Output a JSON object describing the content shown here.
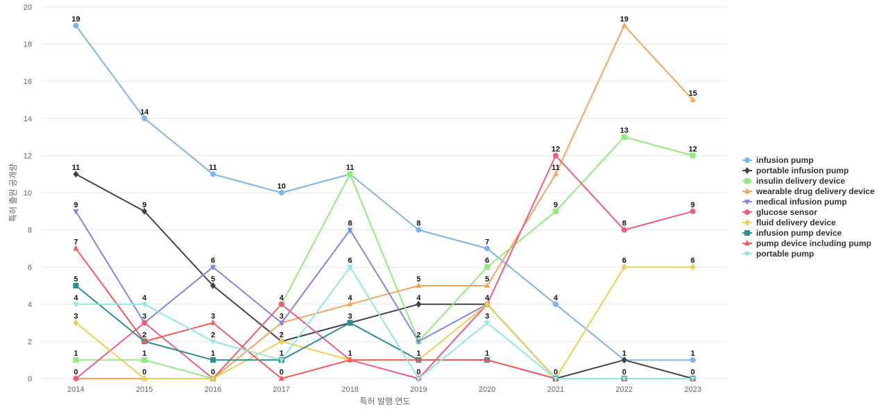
{
  "chart_data": {
    "type": "line",
    "title": "",
    "xlabel": "특허 발행 연도",
    "ylabel": "특허 출원 공개량",
    "x": [
      "2014",
      "2015",
      "2016",
      "2017",
      "2018",
      "2019",
      "2020",
      "2021",
      "2022",
      "2023"
    ],
    "ylim": [
      0,
      20
    ],
    "yticks": [
      0,
      2,
      4,
      6,
      8,
      10,
      12,
      14,
      16,
      18,
      20
    ],
    "grid": true,
    "legend_position": "right",
    "series": [
      {
        "name": "infusion pump",
        "color": "#7cb5ec",
        "marker": "circle",
        "values": [
          19,
          14,
          11,
          10,
          11,
          8,
          7,
          4,
          1,
          1
        ]
      },
      {
        "name": "portable infusion pump",
        "color": "#434348",
        "marker": "diamond",
        "values": [
          11,
          9,
          5,
          2,
          3,
          4,
          4,
          0,
          1,
          0
        ]
      },
      {
        "name": "insulin delivery device",
        "color": "#90ed7d",
        "marker": "square",
        "values": [
          1,
          1,
          0,
          4,
          11,
          2,
          6,
          9,
          13,
          12
        ]
      },
      {
        "name": "wearable drug delivery device",
        "color": "#f7a35c",
        "marker": "triangle",
        "values": [
          0,
          0,
          0,
          3,
          4,
          5,
          5,
          11,
          19,
          15
        ]
      },
      {
        "name": "medical infusion pump",
        "color": "#8085e9",
        "marker": "triangle-down",
        "values": [
          9,
          3,
          6,
          3,
          8,
          2,
          4,
          0,
          0,
          0
        ]
      },
      {
        "name": "glucose sensor",
        "color": "#f15c80",
        "marker": "circle",
        "values": [
          0,
          3,
          0,
          4,
          1,
          0,
          4,
          12,
          8,
          9
        ]
      },
      {
        "name": "fluid delivery device",
        "color": "#e4d354",
        "marker": "diamond",
        "values": [
          3,
          0,
          0,
          2,
          1,
          1,
          4,
          0,
          6,
          6
        ]
      },
      {
        "name": "infusion pump device",
        "color": "#2b908f",
        "marker": "square",
        "values": [
          5,
          2,
          1,
          1,
          3,
          1,
          1,
          0,
          0,
          0
        ]
      },
      {
        "name": "pump device including pump",
        "color": "#f45b5b",
        "marker": "triangle",
        "values": [
          7,
          2,
          3,
          0,
          1,
          1,
          1,
          0,
          0,
          0
        ]
      },
      {
        "name": "portable pump",
        "color": "#91e8e1",
        "marker": "triangle-down",
        "values": [
          4,
          4,
          2,
          1,
          6,
          0,
          3,
          0,
          0,
          0
        ]
      }
    ],
    "data_labels": [
      {
        "x": "2014",
        "y": 19,
        "text": "19"
      },
      {
        "x": "2014",
        "y": 11,
        "text": "11"
      },
      {
        "x": "2014",
        "y": 9,
        "text": "9"
      },
      {
        "x": "2014",
        "y": 7,
        "text": "7"
      },
      {
        "x": "2014",
        "y": 5,
        "text": "5"
      },
      {
        "x": "2014",
        "y": 4,
        "text": "4"
      },
      {
        "x": "2014",
        "y": 3,
        "text": "3"
      },
      {
        "x": "2014",
        "y": 1,
        "text": "1"
      },
      {
        "x": "2014",
        "y": 0,
        "text": "0"
      },
      {
        "x": "2015",
        "y": 14,
        "text": "14"
      },
      {
        "x": "2015",
        "y": 9,
        "text": "9"
      },
      {
        "x": "2015",
        "y": 4,
        "text": "4"
      },
      {
        "x": "2015",
        "y": 3,
        "text": "3"
      },
      {
        "x": "2015",
        "y": 2,
        "text": "2"
      },
      {
        "x": "2015",
        "y": 1,
        "text": "1"
      },
      {
        "x": "2015",
        "y": 0,
        "text": "0"
      },
      {
        "x": "2016",
        "y": 11,
        "text": "11"
      },
      {
        "x": "2016",
        "y": 6,
        "text": "6"
      },
      {
        "x": "2016",
        "y": 5,
        "text": "5"
      },
      {
        "x": "2016",
        "y": 3,
        "text": "3"
      },
      {
        "x": "2016",
        "y": 2,
        "text": "2"
      },
      {
        "x": "2016",
        "y": 1,
        "text": "1"
      },
      {
        "x": "2016",
        "y": 0,
        "text": "0"
      },
      {
        "x": "2017",
        "y": 10,
        "text": "10"
      },
      {
        "x": "2017",
        "y": 4,
        "text": "4"
      },
      {
        "x": "2017",
        "y": 3,
        "text": "3"
      },
      {
        "x": "2017",
        "y": 2,
        "text": "2"
      },
      {
        "x": "2017",
        "y": 1,
        "text": "1"
      },
      {
        "x": "2017",
        "y": 0,
        "text": "0"
      },
      {
        "x": "2018",
        "y": 11,
        "text": "11"
      },
      {
        "x": "2018",
        "y": 8,
        "text": "8"
      },
      {
        "x": "2018",
        "y": 6,
        "text": "6"
      },
      {
        "x": "2018",
        "y": 4,
        "text": "4"
      },
      {
        "x": "2018",
        "y": 3,
        "text": "3"
      },
      {
        "x": "2018",
        "y": 1,
        "text": "1"
      },
      {
        "x": "2019",
        "y": 8,
        "text": "8"
      },
      {
        "x": "2019",
        "y": 5,
        "text": "5"
      },
      {
        "x": "2019",
        "y": 4,
        "text": "4"
      },
      {
        "x": "2019",
        "y": 2,
        "text": "2"
      },
      {
        "x": "2019",
        "y": 1,
        "text": "1"
      },
      {
        "x": "2019",
        "y": 0,
        "text": "0"
      },
      {
        "x": "2020",
        "y": 7,
        "text": "7"
      },
      {
        "x": "2020",
        "y": 6,
        "text": "6"
      },
      {
        "x": "2020",
        "y": 5,
        "text": "5"
      },
      {
        "x": "2020",
        "y": 4,
        "text": "4"
      },
      {
        "x": "2020",
        "y": 3,
        "text": "3"
      },
      {
        "x": "2020",
        "y": 1,
        "text": "1"
      },
      {
        "x": "2021",
        "y": 12,
        "text": "12"
      },
      {
        "x": "2021",
        "y": 11,
        "text": "11"
      },
      {
        "x": "2021",
        "y": 9,
        "text": "9"
      },
      {
        "x": "2021",
        "y": 4,
        "text": "4"
      },
      {
        "x": "2021",
        "y": 0,
        "text": "0"
      },
      {
        "x": "2022",
        "y": 19,
        "text": "19"
      },
      {
        "x": "2022",
        "y": 13,
        "text": "13"
      },
      {
        "x": "2022",
        "y": 8,
        "text": "8"
      },
      {
        "x": "2022",
        "y": 6,
        "text": "6"
      },
      {
        "x": "2022",
        "y": 1,
        "text": "1"
      },
      {
        "x": "2022",
        "y": 0,
        "text": "0"
      },
      {
        "x": "2023",
        "y": 15,
        "text": "15"
      },
      {
        "x": "2023",
        "y": 12,
        "text": "12"
      },
      {
        "x": "2023",
        "y": 9,
        "text": "9"
      },
      {
        "x": "2023",
        "y": 6,
        "text": "6"
      },
      {
        "x": "2023",
        "y": 1,
        "text": "1"
      },
      {
        "x": "2023",
        "y": 0,
        "text": "0"
      }
    ]
  }
}
